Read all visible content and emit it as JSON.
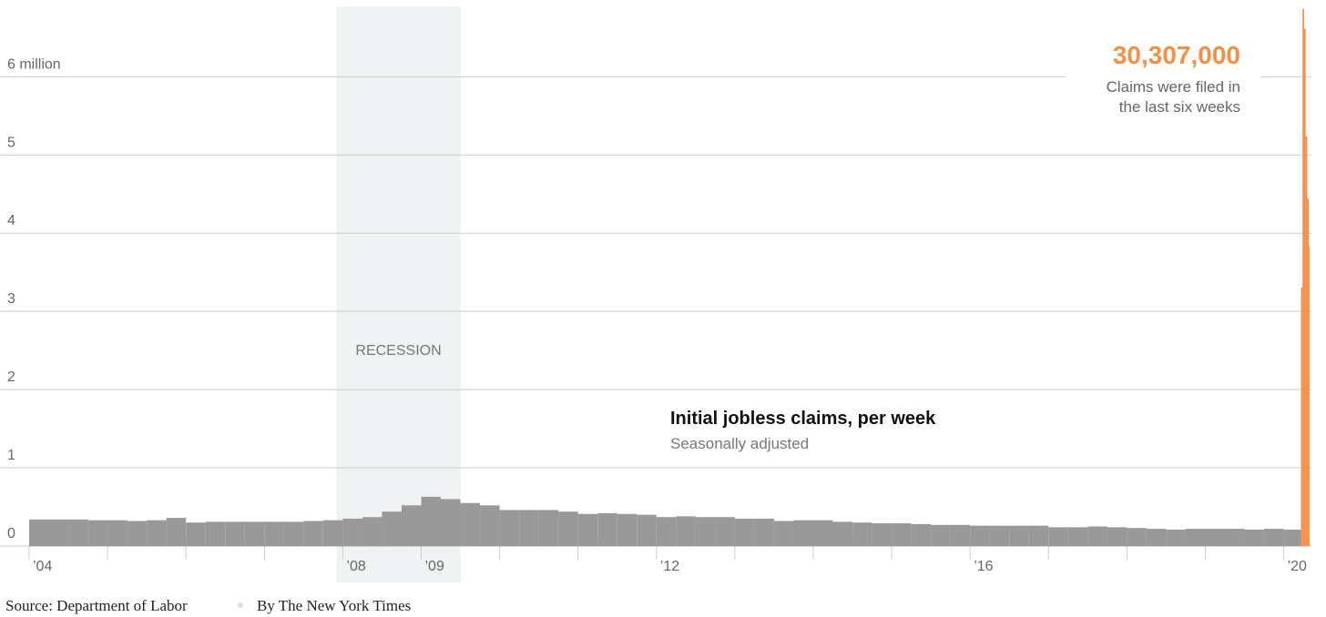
{
  "chart_data": {
    "type": "bar",
    "title": "Initial jobless claims, per week",
    "subtitle": "Seasonally adjusted",
    "annotation": {
      "value": "30,307,000",
      "lines": [
        "Claims were filed in",
        "the last six weeks"
      ]
    },
    "shaded_region": {
      "label": "RECESSION",
      "x": [
        2007.92,
        2009.5
      ],
      "color": "#eff3f3"
    },
    "source": "Source: Department of Labor",
    "credit": "By The New York Times",
    "xlim": [
      2004,
      2020.33
    ],
    "ylim": [
      0,
      6.9
    ],
    "yticks": [
      0,
      1,
      2,
      3,
      4,
      5,
      {
        "value": 6,
        "label": "6 million"
      }
    ],
    "xticks": [
      {
        "value": 2004,
        "label": "’04"
      },
      {
        "value": 2005,
        "label": null
      },
      {
        "value": 2006,
        "label": null
      },
      {
        "value": 2007,
        "label": null
      },
      {
        "value": 2008,
        "label": "’08"
      },
      {
        "value": 2009,
        "label": "’09"
      },
      {
        "value": 2010,
        "label": null
      },
      {
        "value": 2011,
        "label": null
      },
      {
        "value": 2012,
        "label": "’12"
      },
      {
        "value": 2013,
        "label": null
      },
      {
        "value": 2014,
        "label": null
      },
      {
        "value": 2015,
        "label": null
      },
      {
        "value": 2016,
        "label": "’16"
      },
      {
        "value": 2017,
        "label": null
      },
      {
        "value": 2018,
        "label": null
      },
      {
        "value": 2019,
        "label": null
      },
      {
        "value": 2020,
        "label": "’20"
      }
    ],
    "grid": true,
    "series": [
      {
        "color": "#999999",
        "x": [
          2004,
          2004.25,
          2004.5,
          2004.75,
          2005,
          2005.25,
          2005.5,
          2005.75,
          2006,
          2006.25,
          2006.5,
          2006.75,
          2007,
          2007.25,
          2007.5,
          2007.75,
          2008,
          2008.25,
          2008.5,
          2008.75,
          2009,
          2009.25,
          2009.5,
          2009.75,
          2010,
          2010.25,
          2010.5,
          2010.75,
          2011,
          2011.25,
          2011.5,
          2011.75,
          2012,
          2012.25,
          2012.5,
          2012.75,
          2013,
          2013.25,
          2013.5,
          2013.75,
          2014,
          2014.25,
          2014.5,
          2014.75,
          2015,
          2015.25,
          2015.5,
          2015.75,
          2016,
          2016.25,
          2016.5,
          2016.75,
          2017,
          2017.25,
          2017.5,
          2017.75,
          2018,
          2018.25,
          2018.5,
          2018.75,
          2019,
          2019.25,
          2019.5,
          2019.75,
          2020
        ],
        "values": [
          0.34,
          0.34,
          0.34,
          0.33,
          0.33,
          0.32,
          0.33,
          0.36,
          0.3,
          0.31,
          0.31,
          0.31,
          0.31,
          0.31,
          0.32,
          0.33,
          0.35,
          0.37,
          0.44,
          0.52,
          0.63,
          0.6,
          0.55,
          0.52,
          0.46,
          0.46,
          0.46,
          0.44,
          0.41,
          0.42,
          0.41,
          0.4,
          0.37,
          0.38,
          0.37,
          0.37,
          0.35,
          0.35,
          0.32,
          0.33,
          0.33,
          0.31,
          0.3,
          0.29,
          0.29,
          0.28,
          0.27,
          0.27,
          0.26,
          0.26,
          0.26,
          0.26,
          0.24,
          0.24,
          0.25,
          0.24,
          0.23,
          0.22,
          0.21,
          0.22,
          0.22,
          0.22,
          0.21,
          0.22,
          0.21
        ]
      },
      {
        "color": "#f68f46",
        "x": [
          2020.22,
          2020.24,
          2020.26,
          2020.28,
          2020.3,
          2020.32
        ],
        "values": [
          3.307,
          6.867,
          6.615,
          5.237,
          4.442,
          3.839
        ]
      }
    ]
  }
}
